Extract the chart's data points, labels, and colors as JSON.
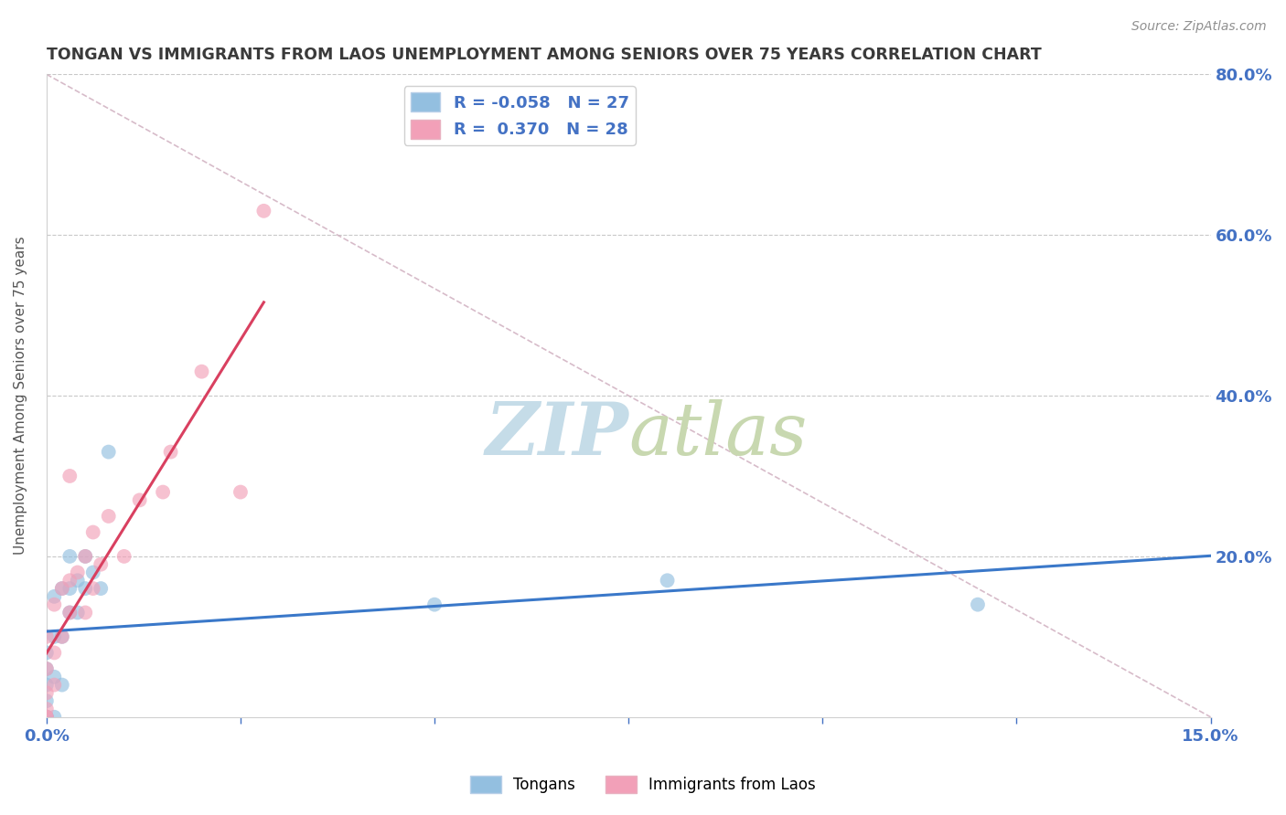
{
  "title": "TONGAN VS IMMIGRANTS FROM LAOS UNEMPLOYMENT AMONG SENIORS OVER 75 YEARS CORRELATION CHART",
  "source": "Source: ZipAtlas.com",
  "ylabel": "Unemployment Among Seniors over 75 years",
  "xlim": [
    0.0,
    0.15
  ],
  "ylim": [
    0.0,
    0.8
  ],
  "xticks": [
    0.0,
    0.025,
    0.05,
    0.075,
    0.1,
    0.125,
    0.15
  ],
  "xtick_labels": [
    "0.0%",
    "",
    "",
    "",
    "",
    "",
    "15.0%"
  ],
  "yticks": [
    0.0,
    0.2,
    0.4,
    0.6,
    0.8
  ],
  "ytick_labels": [
    "",
    "20.0%",
    "40.0%",
    "60.0%",
    "80.0%"
  ],
  "tongan_x": [
    0.0,
    0.0,
    0.0,
    0.0,
    0.0,
    0.0,
    0.0,
    0.001,
    0.001,
    0.001,
    0.001,
    0.002,
    0.002,
    0.002,
    0.003,
    0.003,
    0.003,
    0.004,
    0.004,
    0.005,
    0.005,
    0.006,
    0.007,
    0.008,
    0.05,
    0.08,
    0.12
  ],
  "tongan_y": [
    0.0,
    0.0,
    0.0,
    0.02,
    0.04,
    0.06,
    0.08,
    0.0,
    0.05,
    0.1,
    0.15,
    0.04,
    0.1,
    0.16,
    0.13,
    0.16,
    0.2,
    0.13,
    0.17,
    0.16,
    0.2,
    0.18,
    0.16,
    0.33,
    0.14,
    0.17,
    0.14
  ],
  "laos_x": [
    0.0,
    0.0,
    0.0,
    0.0,
    0.0,
    0.0,
    0.001,
    0.001,
    0.001,
    0.002,
    0.002,
    0.003,
    0.003,
    0.003,
    0.004,
    0.005,
    0.005,
    0.006,
    0.006,
    0.007,
    0.008,
    0.01,
    0.012,
    0.015,
    0.016,
    0.02,
    0.025,
    0.028
  ],
  "laos_y": [
    0.0,
    0.0,
    0.01,
    0.03,
    0.06,
    0.1,
    0.04,
    0.08,
    0.14,
    0.1,
    0.16,
    0.13,
    0.17,
    0.3,
    0.18,
    0.13,
    0.2,
    0.16,
    0.23,
    0.19,
    0.25,
    0.2,
    0.27,
    0.28,
    0.33,
    0.43,
    0.28,
    0.63
  ],
  "tongan_color": "#93bfe0",
  "laos_color": "#f2a0b8",
  "tongan_trend_color": "#3a78c9",
  "laos_trend_color": "#d94060",
  "diagonal_color": "#d0b0c0",
  "background_color": "#ffffff",
  "watermark_zip_color": "#c5dce8",
  "watermark_atlas_color": "#c8d8b0",
  "title_color": "#3a3a3a",
  "axis_label_color": "#555555",
  "tick_color": "#4472c4",
  "marker_size": 130
}
